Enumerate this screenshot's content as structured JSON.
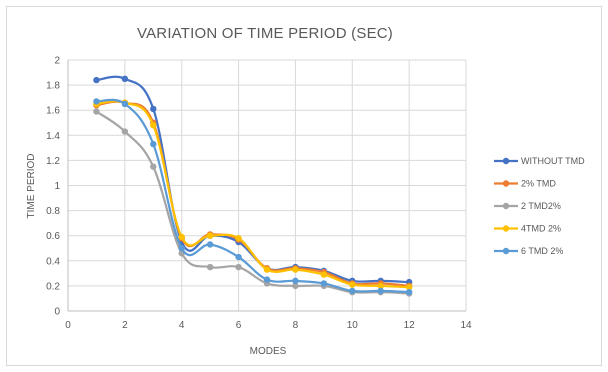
{
  "chart_data": {
    "type": "line",
    "title": "VARIATION OF TIME PERIOD (SEC)",
    "xlabel": "MODES",
    "ylabel": "TIME PERIOD",
    "xlim": [
      0,
      14
    ],
    "ylim": [
      0,
      2
    ],
    "xticks": [
      "0",
      "2",
      "4",
      "6",
      "8",
      "10",
      "12",
      "14"
    ],
    "yticks": [
      "0",
      "0.2",
      "0.4",
      "0.6",
      "0.8",
      "1",
      "1.2",
      "1.4",
      "1.6",
      "1.8",
      "2"
    ],
    "grid": true,
    "legend_position": "right",
    "x": [
      1,
      2,
      3,
      4,
      5,
      6,
      7,
      8,
      9,
      10,
      11,
      12
    ],
    "series": [
      {
        "name": "WITHOUT TMD",
        "color": "#4472c4",
        "values": [
          1.84,
          1.85,
          1.61,
          0.55,
          0.6,
          0.55,
          0.34,
          0.35,
          0.32,
          0.24,
          0.24,
          0.23
        ]
      },
      {
        "name": "2% TMD",
        "color": "#ed7d31",
        "values": [
          1.64,
          1.66,
          1.5,
          0.58,
          0.61,
          0.57,
          0.34,
          0.34,
          0.31,
          0.22,
          0.22,
          0.2
        ]
      },
      {
        "name": "2 TMD2%",
        "color": "#a5a5a5",
        "values": [
          1.59,
          1.43,
          1.15,
          0.46,
          0.35,
          0.35,
          0.22,
          0.2,
          0.2,
          0.15,
          0.15,
          0.14
        ]
      },
      {
        "name": "4TMD 2%",
        "color": "#ffc000",
        "values": [
          1.65,
          1.66,
          1.48,
          0.59,
          0.6,
          0.58,
          0.33,
          0.33,
          0.29,
          0.21,
          0.2,
          0.19
        ]
      },
      {
        "name": "6 TMD 2%",
        "color": "#5b9bd5",
        "values": [
          1.67,
          1.65,
          1.33,
          0.5,
          0.53,
          0.43,
          0.25,
          0.24,
          0.22,
          0.16,
          0.16,
          0.15
        ]
      }
    ]
  }
}
